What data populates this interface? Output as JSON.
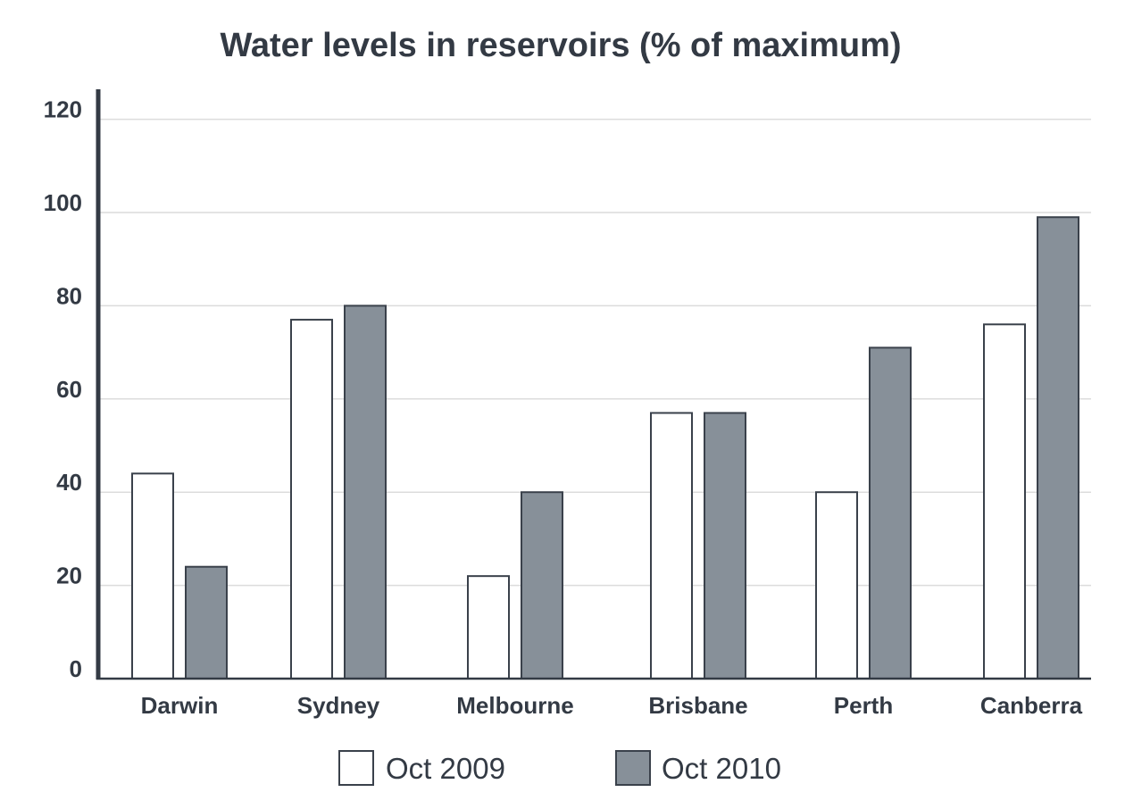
{
  "chart_data": {
    "type": "bar",
    "title": "Water levels in reservoirs (% of maximum)",
    "xlabel": "",
    "ylabel": "",
    "ylim": [
      0,
      125
    ],
    "yticks": [
      0,
      20,
      40,
      60,
      80,
      100,
      120
    ],
    "categories": [
      "Darwin",
      "Sydney",
      "Melbourne",
      "Brisbane",
      "Perth",
      "Canberra"
    ],
    "series": [
      {
        "name": "Oct 2009",
        "values": [
          44,
          77,
          22,
          57,
          40,
          76
        ]
      },
      {
        "name": "Oct 2010",
        "values": [
          24,
          80,
          40,
          57,
          71,
          99
        ]
      }
    ],
    "grid": true,
    "legend_position": "bottom-center",
    "colors": {
      "series_2009_fill": "#ffffff",
      "series_2010_fill": "#879099",
      "bar_stroke": "#3a414b",
      "axis": "#333a44",
      "grid": "#dcdcdc",
      "text": "#333a44"
    }
  }
}
